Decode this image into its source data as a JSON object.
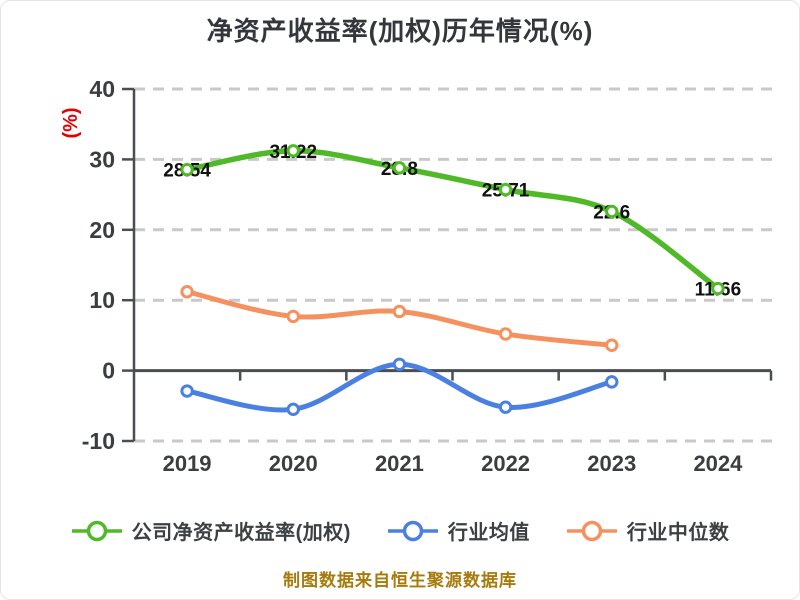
{
  "title": "净资产收益率(加权)历年情况(%)",
  "caption": "制图数据来自恒生聚源数据库",
  "colors": {
    "title_text": "#33363a",
    "axis_line": "#4a4e53",
    "grid_line": "#c9c9c9",
    "tick_text": "#3a3d41",
    "ylabel_text": "#e60000",
    "data_label_text": "#111111",
    "caption_text": "#a87a0b",
    "series_company": "#50b928",
    "series_industry_avg": "#4a80e2",
    "series_industry_median": "#f5915f"
  },
  "chart_data": {
    "type": "line",
    "title": "净资产收益率(加权)历年情况(%)",
    "xlabel": "",
    "ylabel": "(%)",
    "categories": [
      "2019",
      "2020",
      "2021",
      "2022",
      "2023",
      "2024"
    ],
    "ylim": [
      -10,
      40
    ],
    "yticks": [
      40,
      30,
      20,
      10,
      0,
      -10
    ],
    "grid": "horizontal-dashed",
    "legend_position": "bottom",
    "series": [
      {
        "name": "公司净资产收益率(加权)",
        "color": "#50b928",
        "values": [
          28.54,
          31.22,
          28.8,
          25.71,
          22.6,
          11.66
        ],
        "labels": [
          "28.54",
          "31.22",
          "28.8",
          "25.71",
          "22.6",
          "11.66"
        ]
      },
      {
        "name": "行业均值",
        "color": "#4a80e2",
        "values": [
          -2.9,
          -5.5,
          0.9,
          -5.2,
          -1.6,
          null
        ]
      },
      {
        "name": "行业中位数",
        "color": "#f5915f",
        "values": [
          11.2,
          7.7,
          8.4,
          5.2,
          3.6,
          null
        ]
      }
    ]
  }
}
